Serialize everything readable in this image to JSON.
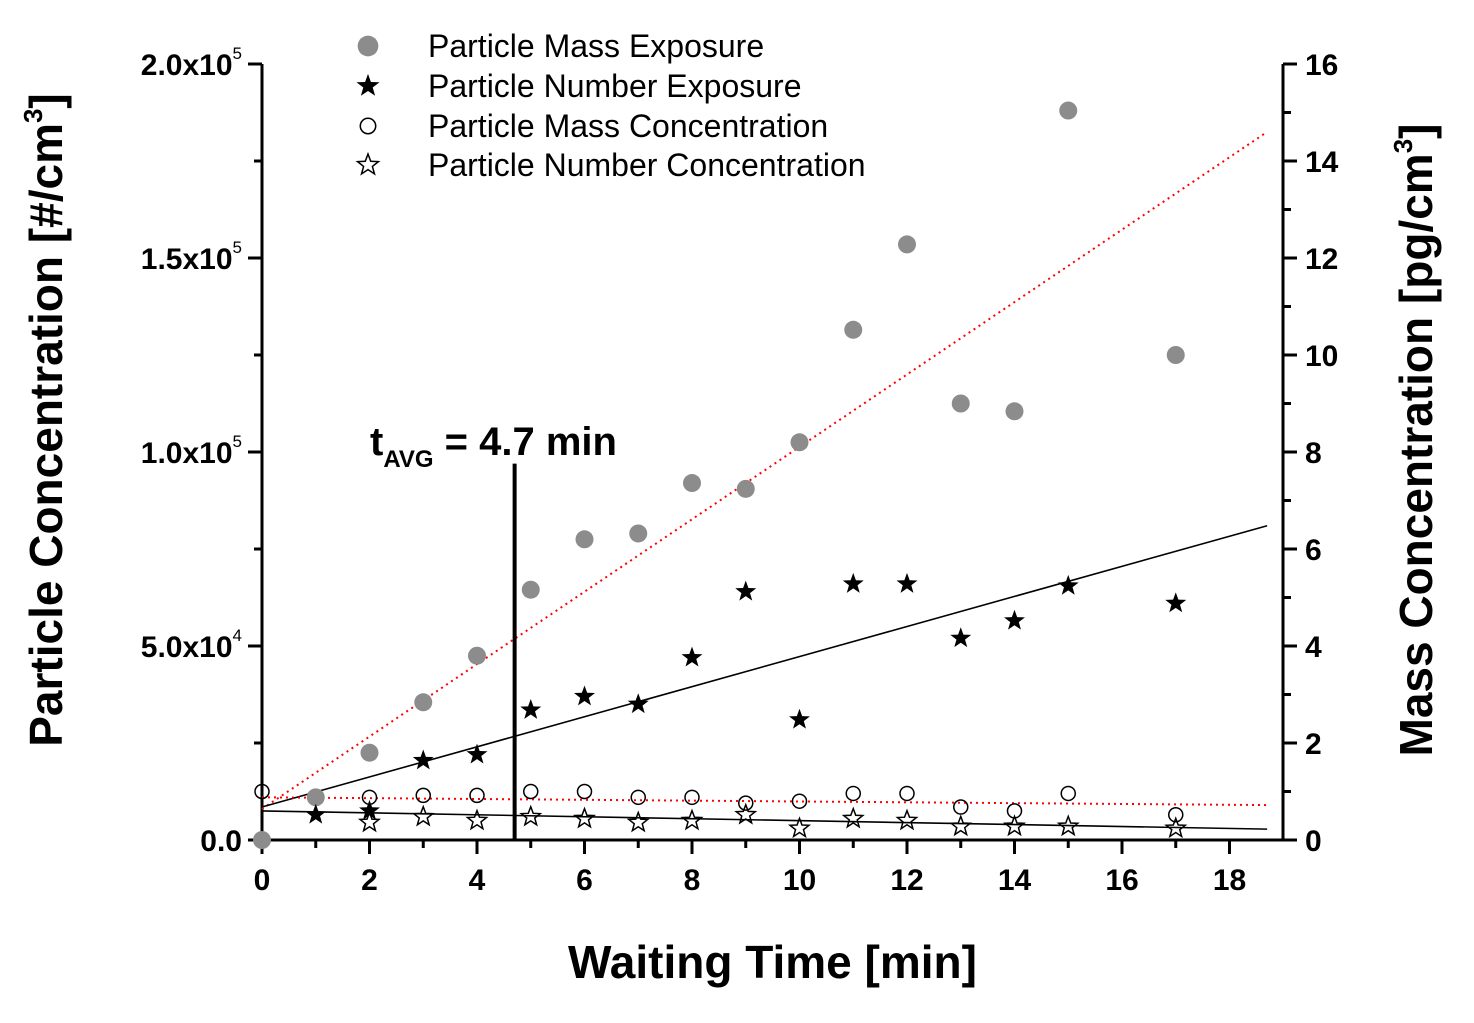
{
  "chart_data": {
    "type": "scatter",
    "title": "",
    "xlabel": "Waiting Time [min]",
    "ylabel_left": {
      "text": "Particle Concentration [#/cm",
      "sup": "3",
      "close": "]"
    },
    "ylabel_right": {
      "text": "Mass Concentration [pg/cm",
      "sup": "3",
      "close": "]"
    },
    "xlim": [
      0,
      19
    ],
    "ylim_left": [
      0,
      200000
    ],
    "ylim_right": [
      0,
      16
    ],
    "x_ticks": [
      0,
      2,
      4,
      6,
      8,
      10,
      12,
      14,
      16,
      18
    ],
    "y_left_ticks": [
      {
        "value": 0,
        "mantissa": "0.0",
        "exp": ""
      },
      {
        "value": 50000,
        "mantissa": "5.0x10",
        "exp": "4"
      },
      {
        "value": 100000,
        "mantissa": "1.0x10",
        "exp": "5"
      },
      {
        "value": 150000,
        "mantissa": "1.5x10",
        "exp": "5"
      },
      {
        "value": 200000,
        "mantissa": "2.0x10",
        "exp": "5"
      }
    ],
    "y_right_ticks": [
      0,
      2,
      4,
      6,
      8,
      10,
      12,
      14,
      16
    ],
    "legend_position": "top-center",
    "series": [
      {
        "name": "Particle Mass Exposure",
        "marker": "filled-circle",
        "color": "#8c8c8c",
        "axis": "left",
        "x": [
          0,
          1,
          2,
          3,
          4,
          5,
          6,
          7,
          8,
          9,
          10,
          11,
          12,
          13,
          14,
          15,
          17
        ],
        "y": [
          0,
          11000,
          22500,
          35500,
          47500,
          64500,
          77500,
          79000,
          92000,
          90500,
          102500,
          131500,
          153500,
          112500,
          110500,
          188000,
          125000
        ]
      },
      {
        "name": "Particle Number Exposure",
        "marker": "filled-star",
        "color": "#000000",
        "axis": "left",
        "x": [
          1,
          2,
          3,
          4,
          5,
          6,
          7,
          8,
          9,
          10,
          11,
          12,
          13,
          14,
          15,
          17
        ],
        "y": [
          6500,
          7500,
          20500,
          22000,
          33500,
          37000,
          35000,
          47000,
          64000,
          31000,
          66000,
          66000,
          52000,
          56500,
          65500,
          61000
        ]
      },
      {
        "name": "Particle Mass Concentration",
        "marker": "open-circle",
        "color": "#000000",
        "axis": "left",
        "x": [
          0,
          2,
          3,
          4,
          5,
          6,
          7,
          8,
          9,
          10,
          11,
          12,
          13,
          14,
          15,
          17
        ],
        "y": [
          12500,
          11000,
          11500,
          11500,
          12500,
          12500,
          11000,
          11000,
          9500,
          10000,
          12000,
          12000,
          8500,
          7500,
          12000,
          6500
        ]
      },
      {
        "name": "Particle Number Concentration",
        "marker": "open-star",
        "color": "#000000",
        "axis": "left",
        "x": [
          2,
          3,
          4,
          5,
          6,
          7,
          8,
          9,
          10,
          11,
          12,
          13,
          14,
          15,
          17
        ],
        "y": [
          4500,
          6000,
          5000,
          6000,
          5500,
          4500,
          5000,
          6500,
          3000,
          5500,
          5000,
          3500,
          3500,
          3500,
          3000
        ]
      }
    ],
    "fit_lines": [
      {
        "name": "mass-exposure-fit",
        "style": "dotted",
        "color": "#ff0000",
        "x": [
          0,
          18.7
        ],
        "y": [
          8000,
          182500
        ]
      },
      {
        "name": "number-exposure-fit",
        "style": "solid",
        "color": "#000000",
        "x": [
          0,
          18.7
        ],
        "y": [
          8500,
          81000
        ]
      },
      {
        "name": "mass-concentration-fit",
        "style": "dotted",
        "color": "#ff0000",
        "x": [
          0,
          18.7
        ],
        "y": [
          11000,
          9000
        ]
      },
      {
        "name": "number-concentration-fit",
        "style": "solid",
        "color": "#000000",
        "x": [
          0,
          18.7
        ],
        "y": [
          7500,
          2800
        ]
      }
    ],
    "annotation": {
      "label_main": "t",
      "label_sub": "AVG",
      "label_rest": " = 4.7 min",
      "x": 4.7,
      "y_top": 97000
    }
  }
}
